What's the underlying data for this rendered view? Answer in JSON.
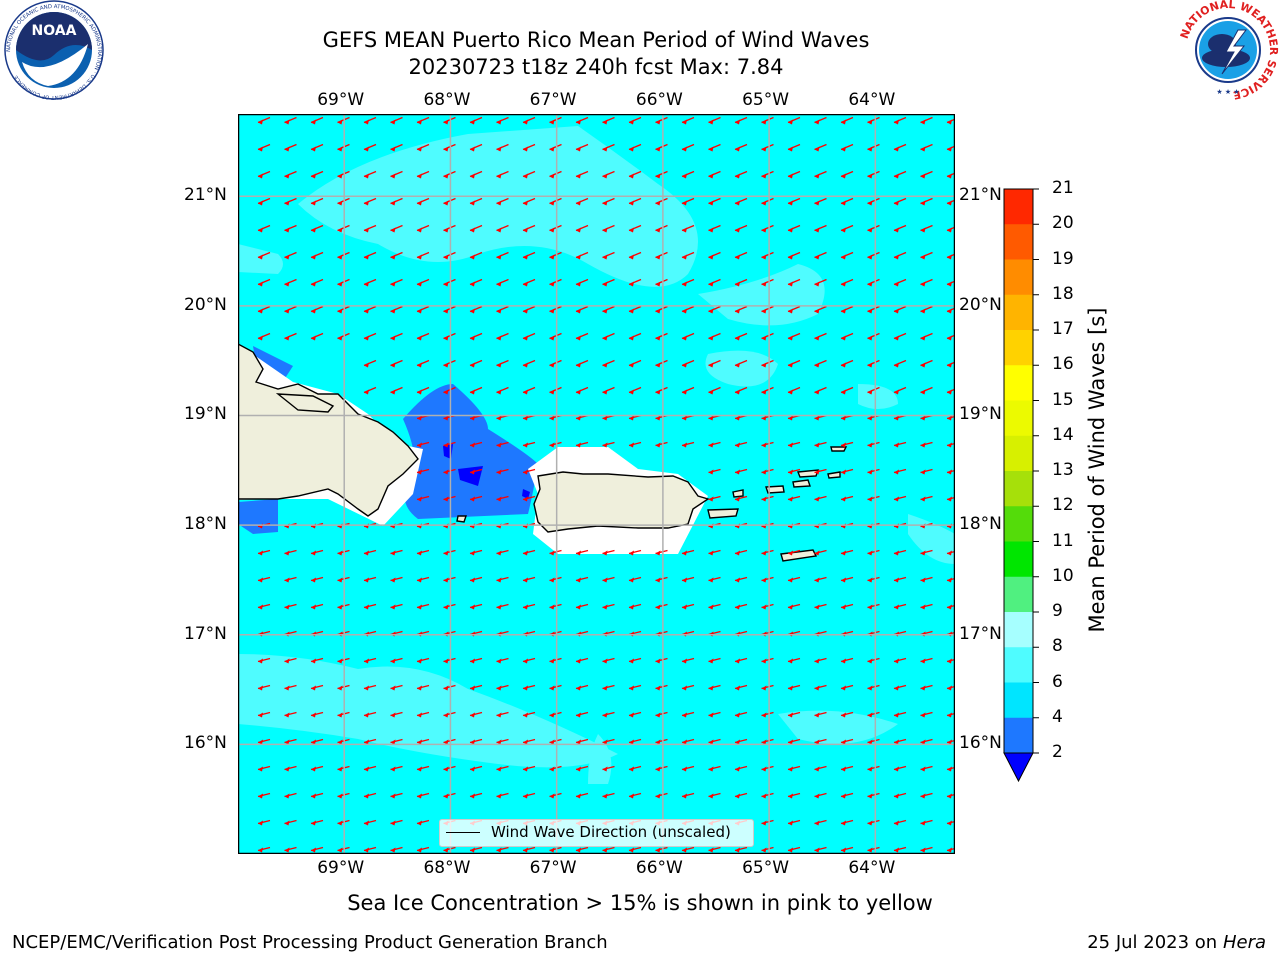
{
  "title": {
    "line1": "GEFS MEAN Puerto Rico Mean Period of Wind Waves",
    "line2": "20230723 t18z 240h fcst   Max: 7.84"
  },
  "map": {
    "lon_ticks": [
      "69°W",
      "68°W",
      "67°W",
      "66°W",
      "65°W",
      "64°W"
    ],
    "lat_ticks": [
      "21°N",
      "20°N",
      "19°N",
      "18°N",
      "17°N",
      "16°N"
    ],
    "lon_range": [
      -70.0,
      -63.25
    ],
    "lat_range": [
      15.0,
      21.75
    ],
    "background_color": "#00ffff",
    "arrow_color": "#ff0000",
    "land_color": "#efefdc",
    "legend": "Wind Wave Direction (unscaled)"
  },
  "colorbar": {
    "label": "Mean Period of Wind Waves [s]",
    "ticks": [
      "2",
      "4",
      "6",
      "8",
      "9",
      "10",
      "11",
      "12",
      "13",
      "14",
      "15",
      "16",
      "17",
      "18",
      "19",
      "20",
      "21"
    ],
    "colors": [
      "#1e78ff",
      "#00e5ff",
      "#4ffcff",
      "#a6ffff",
      "#50f080",
      "#00e600",
      "#54dc0a",
      "#a6e00a",
      "#d7f000",
      "#ecfa00",
      "#ffff00",
      "#ffd200",
      "#ffb400",
      "#ff8c00",
      "#ff5a00",
      "#ff2800"
    ],
    "under_color": "#0000ff",
    "over_color": "#ff0000"
  },
  "subnote": "Sea Ice Concentration > 15% is shown in pink to yellow",
  "footer": {
    "left": "NCEP/EMC/Verification Post Processing Product Generation Branch",
    "right_date": "25 Jul 2023 on ",
    "right_host": "Hera"
  },
  "logos": {
    "noaa": "NOAA",
    "noaa_ring": "NATIONAL OCEANIC AND ATMOSPHERIC ADMINISTRATION · U.S. DEPARTMENT OF COMMERCE",
    "nws_ring": "NATIONAL WEATHER SERVICE"
  }
}
